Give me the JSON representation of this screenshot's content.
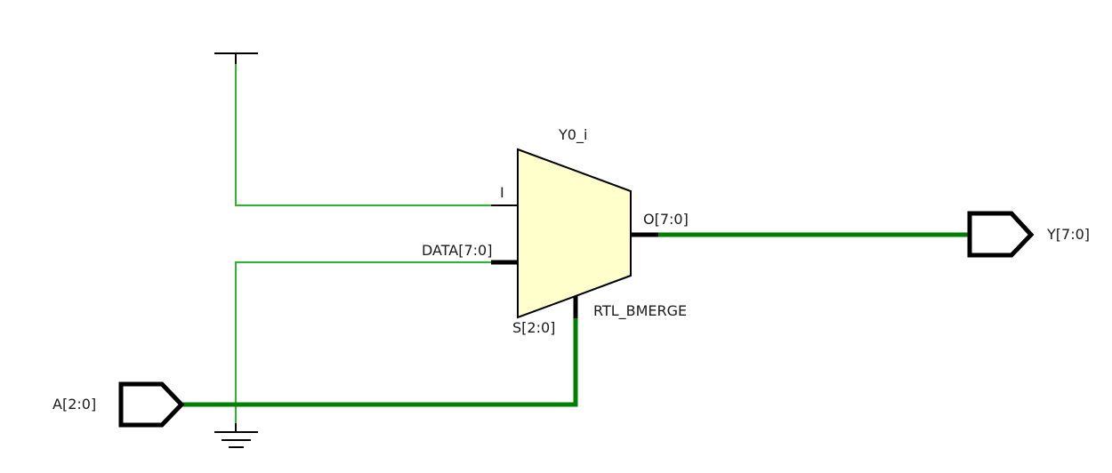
{
  "schematic": {
    "cell": {
      "instance_name": "Y0_i",
      "type_name": "RTL_BMERGE",
      "pins": {
        "i": "I",
        "data": "DATA[7:0]",
        "s": "S[2:0]",
        "o": "O[7:0]"
      }
    },
    "ports": {
      "input": "A[2:0]",
      "output": "Y[7:0]"
    },
    "colors": {
      "wire": "#2db52d",
      "bus": "#008000",
      "cell_fill": "#ffffcc",
      "outline": "#000000"
    },
    "icons": [
      "vcc-icon",
      "ground-icon",
      "input-port-icon",
      "output-port-icon"
    ]
  }
}
